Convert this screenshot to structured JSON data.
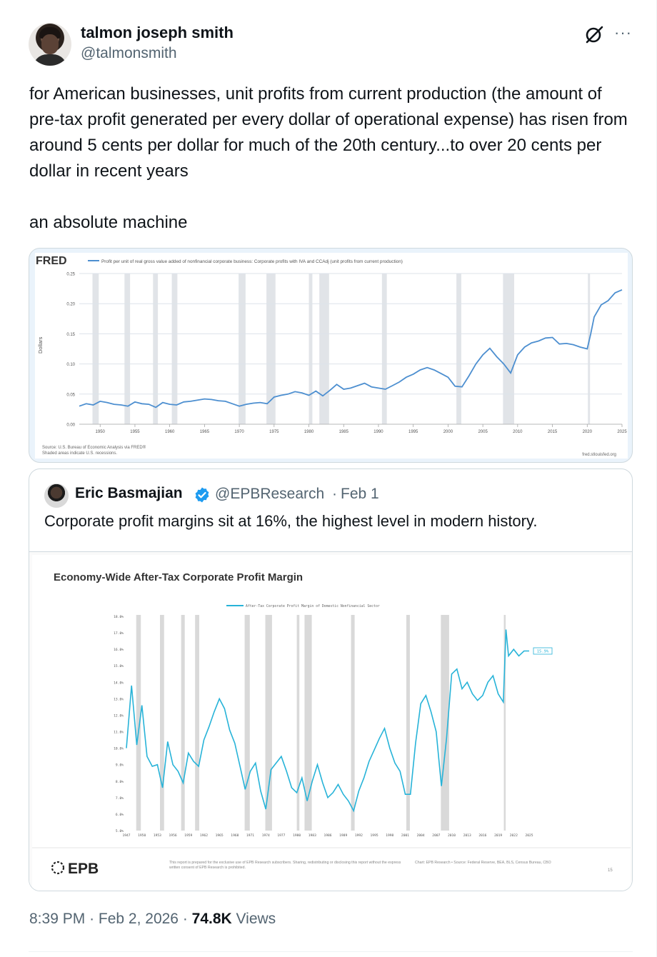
{
  "post": {
    "author_name": "talmon joseph smith",
    "author_handle": "@talmonsmith",
    "text": "for American businesses, unit profits from current production (the amount of pre-tax profit  generated per every dollar of operational expense) has risen from around 5 cents per dollar for much of the 20th century...to over 20 cents per dollar in recent years\n\nan absolute machine",
    "time": "8:39 PM",
    "date": "Feb 2, 2026",
    "views_count": "74.8K",
    "views_label": "Views",
    "more_label": "···"
  },
  "icons": {
    "grok": "grok-icon",
    "more": "more-icon",
    "verified": "verified-badge-icon",
    "verified_color": "#1d9bf0"
  },
  "quote": {
    "author_name": "Eric Basmajian",
    "author_handle": "@EPBResearch",
    "separator": "·",
    "date": "Feb 1",
    "text": "Corporate profit margins sit at 16%, the highest level in modern history."
  },
  "chart_data": [
    {
      "type": "line",
      "brand": "FRED",
      "title": "Profit per unit of real gross value added of nonfinancial corporate business: Corporate profits with IVA and CCAdj (unit profits from current production)",
      "ylabel": "Dollars",
      "ylim": [
        0,
        0.25
      ],
      "yticks": [
        "0.25",
        "0.20",
        "0.15",
        "0.10",
        "0.05",
        "0.00"
      ],
      "xticks": [
        "1950",
        "1955",
        "1960",
        "1965",
        "1970",
        "1975",
        "1980",
        "1985",
        "1990",
        "1995",
        "2000",
        "2005",
        "2010",
        "2015",
        "2020",
        "2025"
      ],
      "source": "Source: U.S. Bureau of Economic Analysis via FRED®",
      "note": "Shaded areas indicate U.S. recessions.",
      "url": "fred.stlouisfed.org",
      "line_color": "#4d8fd0",
      "series": [
        {
          "x": [
            1947,
            1948,
            1949,
            1950,
            1951,
            1952,
            1953,
            1954,
            1955,
            1956,
            1957,
            1958,
            1959,
            1960,
            1961,
            1962,
            1963,
            1964,
            1965,
            1966,
            1967,
            1968,
            1969,
            1970,
            1971,
            1972,
            1973,
            1974,
            1975,
            1976,
            1977,
            1978,
            1979,
            1980,
            1981,
            1982,
            1983,
            1984,
            1985,
            1986,
            1987,
            1988,
            1989,
            1990,
            1991,
            1992,
            1993,
            1994,
            1995,
            1996,
            1997,
            1998,
            1999,
            2000,
            2001,
            2002,
            2003,
            2004,
            2005,
            2006,
            2007,
            2008,
            2009,
            2010,
            2011,
            2012,
            2013,
            2014,
            2015,
            2016,
            2017,
            2018,
            2019,
            2020,
            2020.5,
            2021,
            2022,
            2023,
            2024,
            2025
          ],
          "values": [
            0.03,
            0.034,
            0.032,
            0.038,
            0.036,
            0.033,
            0.032,
            0.03,
            0.037,
            0.034,
            0.033,
            0.028,
            0.036,
            0.033,
            0.032,
            0.037,
            0.038,
            0.04,
            0.042,
            0.041,
            0.039,
            0.038,
            0.034,
            0.03,
            0.033,
            0.035,
            0.036,
            0.034,
            0.045,
            0.048,
            0.05,
            0.054,
            0.052,
            0.048,
            0.055,
            0.047,
            0.056,
            0.066,
            0.058,
            0.06,
            0.064,
            0.068,
            0.062,
            0.06,
            0.058,
            0.064,
            0.07,
            0.078,
            0.083,
            0.09,
            0.094,
            0.09,
            0.084,
            0.078,
            0.063,
            0.062,
            0.08,
            0.1,
            0.115,
            0.126,
            0.112,
            0.1,
            0.085,
            0.115,
            0.128,
            0.135,
            0.138,
            0.143,
            0.144,
            0.133,
            0.134,
            0.132,
            0.128,
            0.125,
            0.15,
            0.178,
            0.198,
            0.205,
            0.218,
            0.223
          ]
        }
      ]
    },
    {
      "type": "line",
      "title": "Economy-Wide After-Tax Corporate Profit Margin",
      "legend": "After-Tax Corporate Profit Margin of Domestic Nonfinancial Sector",
      "legend_position": "top",
      "end_label": "15.9%",
      "line_color": "#27b3d8",
      "ylim": [
        5.0,
        18.0
      ],
      "yticks": [
        "18.0%",
        "17.0%",
        "16.0%",
        "15.0%",
        "14.0%",
        "13.0%",
        "12.0%",
        "11.0%",
        "10.0%",
        "9.0%",
        "8.0%",
        "7.0%",
        "6.0%",
        "5.0%"
      ],
      "xticks": [
        "1947",
        "1950",
        "1953",
        "1956",
        "1959",
        "1962",
        "1965",
        "1968",
        "1971",
        "1974",
        "1977",
        "1980",
        "1983",
        "1986",
        "1989",
        "1992",
        "1995",
        "1998",
        "2001",
        "2004",
        "2007",
        "2010",
        "2013",
        "2016",
        "2019",
        "2022",
        "2025"
      ],
      "footer_brand": "EPB",
      "footer_disclaimer": "This report is prepared for the exclusive use of EPB Research subscribers. Sharing, redistributing or disclosing this report without the express written consent of EPB Research is prohibited.",
      "footer_source": "Chart: EPB Research • Source: Federal Reserve, BEA, BLS, Census Bureau, CBO",
      "footer_page": "15",
      "series": [
        {
          "name": "After-Tax Corporate Profit Margin of Domestic Nonfinancial Sector",
          "x": [
            1947,
            1948,
            1949,
            1950,
            1951,
            1952,
            1953,
            1954,
            1955,
            1956,
            1957,
            1958,
            1959,
            1960,
            1961,
            1962,
            1963,
            1964,
            1965,
            1966,
            1967,
            1968,
            1969,
            1970,
            1971,
            1972,
            1973,
            1974,
            1975,
            1976,
            1977,
            1978,
            1979,
            1980,
            1981,
            1982,
            1983,
            1984,
            1985,
            1986,
            1987,
            1988,
            1989,
            1990,
            1991,
            1992,
            1993,
            1994,
            1995,
            1996,
            1997,
            1998,
            1999,
            2000,
            2001,
            2002,
            2003,
            2004,
            2005,
            2006,
            2007,
            2008,
            2009,
            2010,
            2011,
            2012,
            2013,
            2014,
            2015,
            2016,
            2017,
            2018,
            2019,
            2020,
            2020.5,
            2021,
            2022,
            2023,
            2024,
            2025
          ],
          "values": [
            10.0,
            13.8,
            10.2,
            12.6,
            9.5,
            8.9,
            9.0,
            7.6,
            10.4,
            9.0,
            8.6,
            7.9,
            9.7,
            9.2,
            8.9,
            10.5,
            11.3,
            12.2,
            13.0,
            12.4,
            11.1,
            10.3,
            8.9,
            7.5,
            8.6,
            9.1,
            7.4,
            6.3,
            8.7,
            9.1,
            9.5,
            8.6,
            7.6,
            7.3,
            8.2,
            6.8,
            8.0,
            9.0,
            7.9,
            7.0,
            7.3,
            7.8,
            7.2,
            6.8,
            6.2,
            7.4,
            8.2,
            9.2,
            9.9,
            10.6,
            11.2,
            10.0,
            9.1,
            8.6,
            7.2,
            7.2,
            10.3,
            12.7,
            13.2,
            12.2,
            11.0,
            7.7,
            10.6,
            14.5,
            14.8,
            13.6,
            14.0,
            13.3,
            12.9,
            13.2,
            14.0,
            14.4,
            13.3,
            12.8,
            17.2,
            15.6,
            16.0,
            15.6,
            15.9,
            15.9
          ]
        }
      ]
    }
  ]
}
